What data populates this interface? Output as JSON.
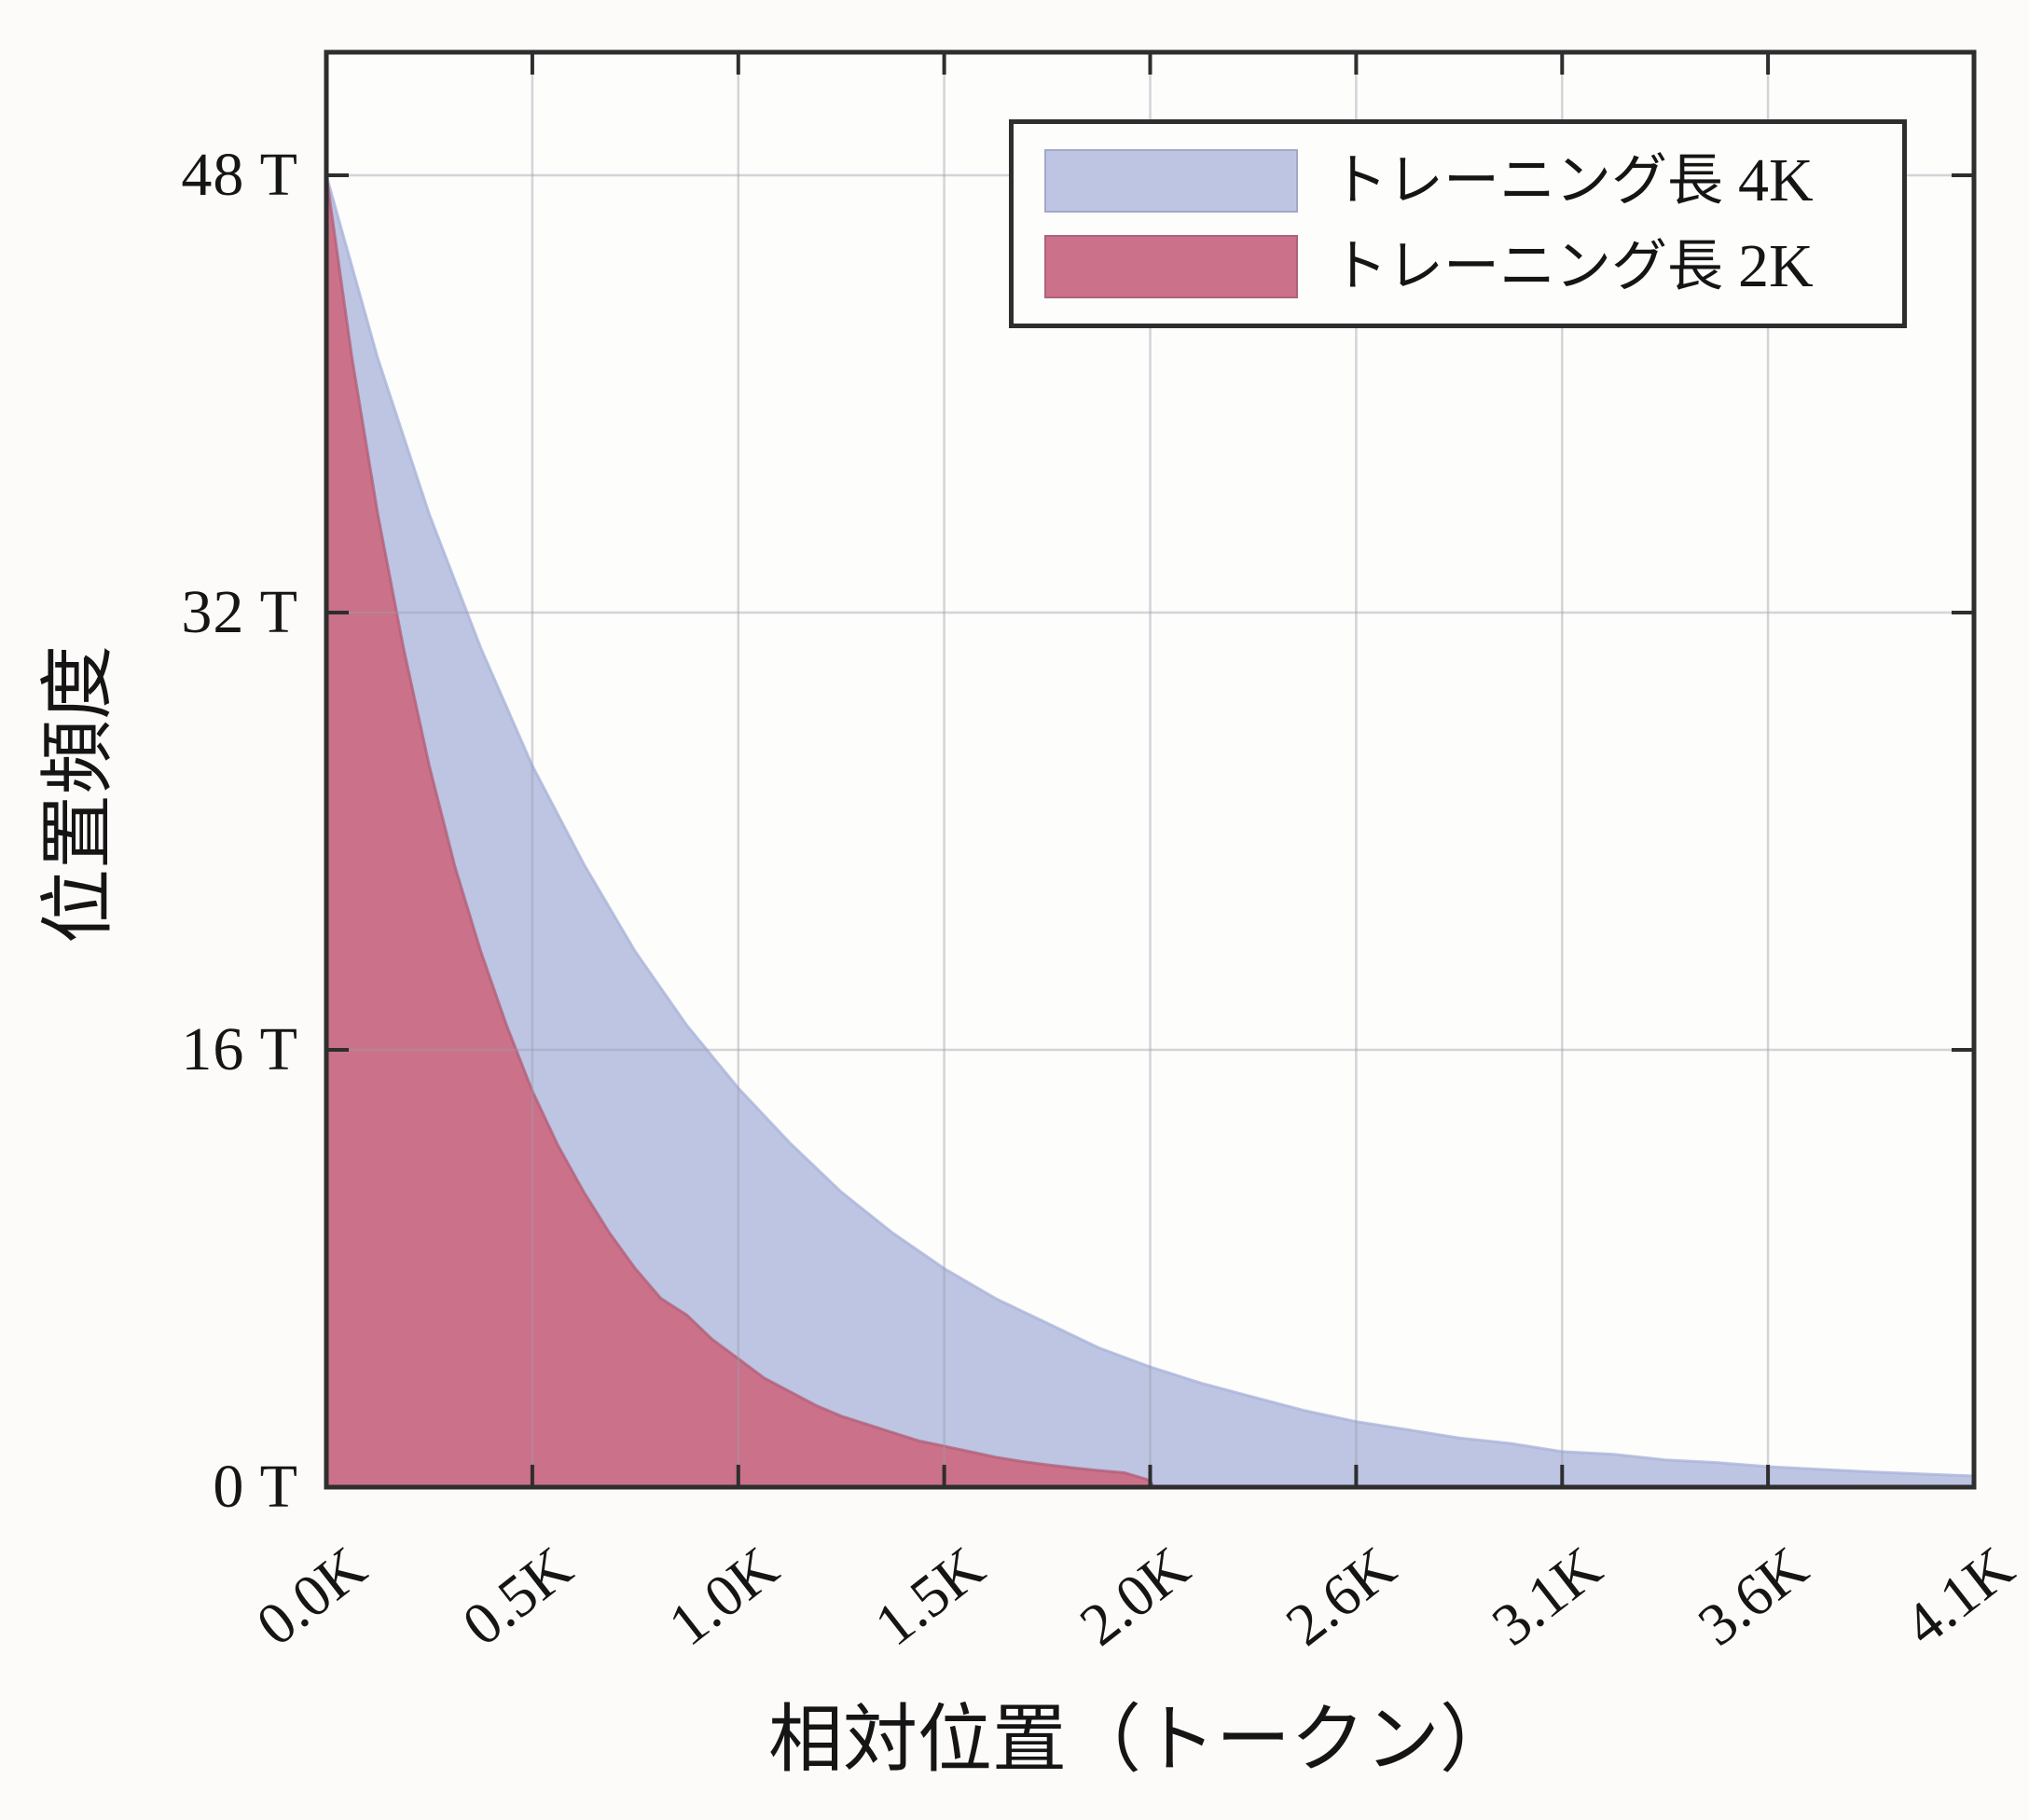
{
  "colors": {
    "background": "#fcfbf9",
    "plot_background": "#fdfdfc",
    "frame": "#2e2e2e",
    "grid": "#9b9ba6",
    "text": "#151515",
    "series_blue": "#bdc5e3",
    "series_red": "#cb7189"
  },
  "chart_data": {
    "type": "area",
    "title": "",
    "xlabel": "相対位置（トークン）",
    "ylabel": "位置頻度",
    "x_unit": "tokens",
    "y_unit": "T",
    "xlim_tokens": [
      0,
      4096
    ],
    "ylim_T": [
      0,
      52.5
    ],
    "grid": true,
    "legend_position": "top-right",
    "x_ticks": [
      {
        "tokens": 0,
        "label": "0.0K"
      },
      {
        "tokens": 512,
        "label": "0.5K"
      },
      {
        "tokens": 1024,
        "label": "1.0K"
      },
      {
        "tokens": 1536,
        "label": "1.5K"
      },
      {
        "tokens": 2048,
        "label": "2.0K"
      },
      {
        "tokens": 2560,
        "label": "2.6K"
      },
      {
        "tokens": 3072,
        "label": "3.1K"
      },
      {
        "tokens": 3584,
        "label": "3.6K"
      },
      {
        "tokens": 4096,
        "label": "4.1K"
      }
    ],
    "y_ticks": [
      {
        "value": 0,
        "label": "0 T"
      },
      {
        "value": 16,
        "label": "16 T"
      },
      {
        "value": 32,
        "label": "32 T"
      },
      {
        "value": 48,
        "label": "48 T"
      }
    ],
    "series": [
      {
        "name": "トレーニング長 4K",
        "name_jp": "トレーニング長",
        "name_size": "4K",
        "fill": "#bdc5e3",
        "edge": "#a7b1d8",
        "points_tokens_T": [
          [
            0,
            48
          ],
          [
            128,
            41.3
          ],
          [
            256,
            35.6
          ],
          [
            384,
            30.7
          ],
          [
            512,
            26.4
          ],
          [
            640,
            22.8
          ],
          [
            768,
            19.6
          ],
          [
            896,
            16.9
          ],
          [
            1024,
            14.6
          ],
          [
            1152,
            12.6
          ],
          [
            1280,
            10.8
          ],
          [
            1408,
            9.3
          ],
          [
            1536,
            8.0
          ],
          [
            1664,
            6.9
          ],
          [
            1792,
            6.0
          ],
          [
            1920,
            5.1
          ],
          [
            2048,
            4.4
          ],
          [
            2176,
            3.8
          ],
          [
            2304,
            3.3
          ],
          [
            2432,
            2.8
          ],
          [
            2560,
            2.4
          ],
          [
            2688,
            2.1
          ],
          [
            2816,
            1.8
          ],
          [
            2944,
            1.6
          ],
          [
            3072,
            1.3
          ],
          [
            3200,
            1.2
          ],
          [
            3328,
            1.0
          ],
          [
            3456,
            0.9
          ],
          [
            3584,
            0.75
          ],
          [
            3712,
            0.65
          ],
          [
            3840,
            0.56
          ],
          [
            3968,
            0.48
          ],
          [
            4096,
            0.41
          ]
        ]
      },
      {
        "name": "トレーニング長 2K",
        "name_jp": "トレーニング長",
        "name_size": "2K",
        "fill": "#cb7189",
        "edge": "#b15d77",
        "points_tokens_T": [
          [
            0,
            48
          ],
          [
            64,
            41.3
          ],
          [
            128,
            35.6
          ],
          [
            192,
            30.7
          ],
          [
            256,
            26.4
          ],
          [
            320,
            22.7
          ],
          [
            384,
            19.6
          ],
          [
            448,
            16.9
          ],
          [
            512,
            14.5
          ],
          [
            576,
            12.5
          ],
          [
            640,
            10.8
          ],
          [
            704,
            9.3
          ],
          [
            768,
            8.0
          ],
          [
            832,
            6.9
          ],
          [
            896,
            6.3
          ],
          [
            960,
            5.4
          ],
          [
            1024,
            4.7
          ],
          [
            1088,
            4.0
          ],
          [
            1152,
            3.5
          ],
          [
            1216,
            3.0
          ],
          [
            1280,
            2.6
          ],
          [
            1344,
            2.3
          ],
          [
            1408,
            2.0
          ],
          [
            1472,
            1.7
          ],
          [
            1536,
            1.5
          ],
          [
            1600,
            1.3
          ],
          [
            1664,
            1.1
          ],
          [
            1728,
            0.94
          ],
          [
            1792,
            0.82
          ],
          [
            1856,
            0.71
          ],
          [
            1920,
            0.61
          ],
          [
            1984,
            0.53
          ],
          [
            2048,
            0.25
          ],
          [
            2056,
            0
          ]
        ]
      }
    ]
  }
}
